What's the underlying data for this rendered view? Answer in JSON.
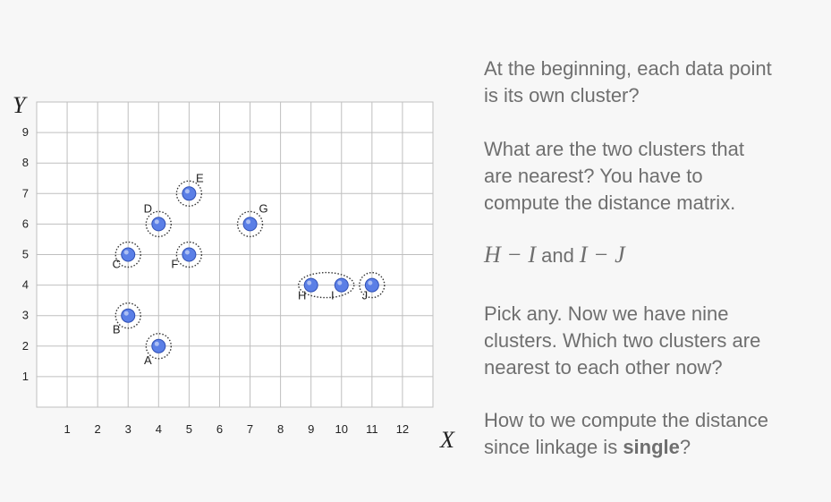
{
  "plot": {
    "y_axis_label": "Y",
    "x_axis_label": "X",
    "x_ticks": [
      "1",
      "2",
      "3",
      "4",
      "5",
      "6",
      "7",
      "8",
      "9",
      "10",
      "11",
      "12"
    ],
    "y_ticks": [
      "1",
      "2",
      "3",
      "4",
      "5",
      "6",
      "7",
      "8",
      "9"
    ],
    "colors": {
      "point_fill": "#5b7fe6",
      "point_stroke": "#2f4fb5",
      "grid": "#bfbfbf",
      "cluster_outline": "#333333"
    },
    "points": [
      {
        "label": "A",
        "x": 4,
        "y": 2
      },
      {
        "label": "B",
        "x": 3,
        "y": 3
      },
      {
        "label": "C",
        "x": 3,
        "y": 5
      },
      {
        "label": "D",
        "x": 4,
        "y": 6
      },
      {
        "label": "E",
        "x": 5,
        "y": 7
      },
      {
        "label": "F",
        "x": 5,
        "y": 5
      },
      {
        "label": "G",
        "x": 7,
        "y": 6
      },
      {
        "label": "H",
        "x": 9,
        "y": 4
      },
      {
        "label": "I",
        "x": 10,
        "y": 4
      },
      {
        "label": "J",
        "x": 11,
        "y": 4
      }
    ],
    "clusters": [
      [
        "A"
      ],
      [
        "B"
      ],
      [
        "C"
      ],
      [
        "D"
      ],
      [
        "E"
      ],
      [
        "F"
      ],
      [
        "G"
      ],
      [
        "H",
        "I"
      ],
      [
        "J"
      ]
    ]
  },
  "text": {
    "p1_line1": "At the beginning, each data point",
    "p1_line2": "is its own cluster?",
    "p2_line1": "What are the two clusters that",
    "p2_line2": "are nearest? You have to",
    "p2_line3": "compute the distance matrix.",
    "p3_math1": "H − I",
    "p3_and": " and ",
    "p3_math2": "I − J",
    "p4_line1": "Pick any. Now we have nine",
    "p4_line2": "clusters. Which two clusters are",
    "p4_line3": "nearest to each other now?",
    "p5_line1": "How to we compute the distance",
    "p5_line2_pre": "since linkage is ",
    "p5_line2_bold": "single",
    "p5_line2_post": "?"
  }
}
